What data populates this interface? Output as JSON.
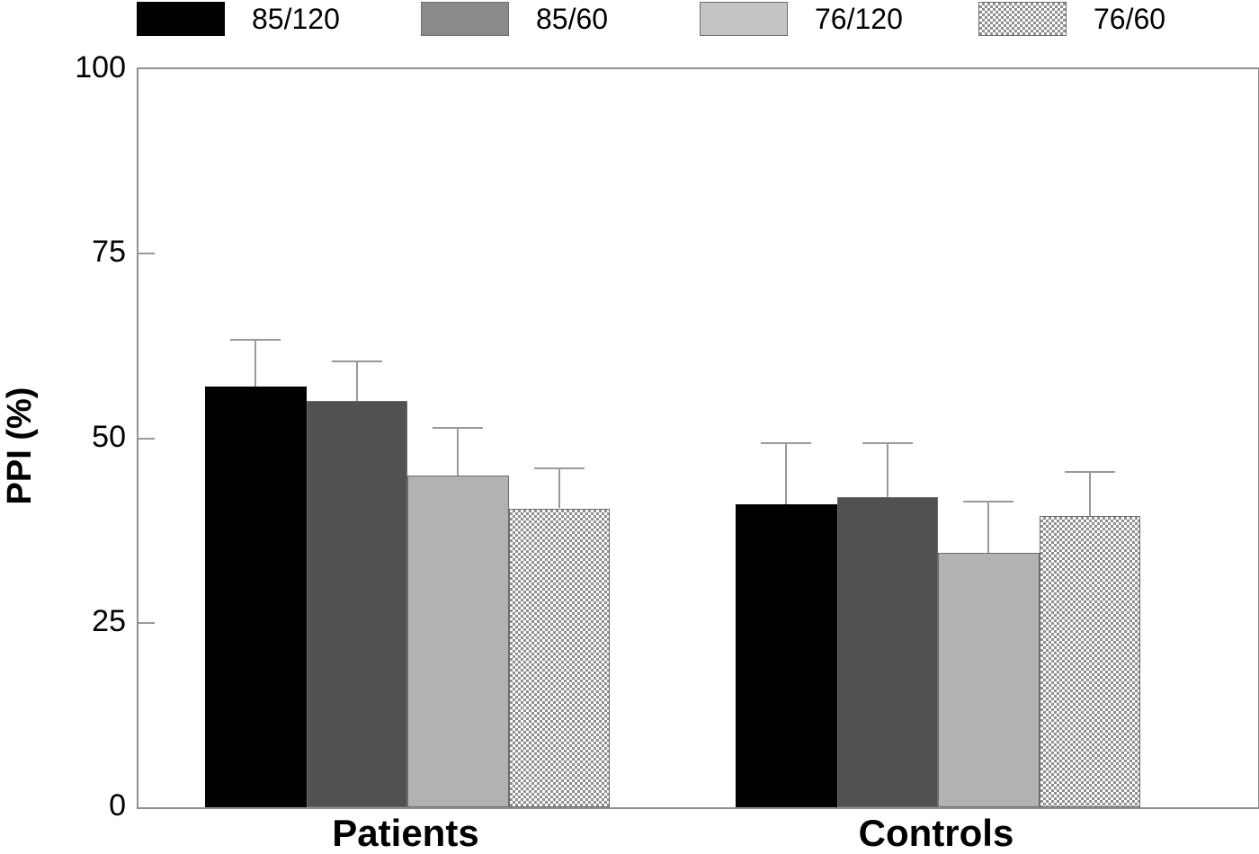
{
  "chart_data": {
    "type": "bar",
    "title": "",
    "ylabel": "PPI (%)",
    "xlabel": "",
    "ylim": [
      0,
      100
    ],
    "yticks": [
      0,
      25,
      50,
      75,
      100
    ],
    "categories": [
      "Patients",
      "Controls"
    ],
    "series": [
      {
        "name": "85/120",
        "bar_color": "#000000",
        "legend_color": "#000000",
        "pattern": false,
        "values": [
          57,
          41
        ],
        "errors": [
          6.5,
          8.5
        ]
      },
      {
        "name": "85/60",
        "bar_color": "#515151",
        "legend_color": "#8a8a8a",
        "pattern": false,
        "values": [
          55,
          42
        ],
        "errors": [
          5.5,
          7.5
        ]
      },
      {
        "name": "76/120",
        "bar_color": "#b2b2b2",
        "legend_color": "#c4c4c4",
        "pattern": false,
        "values": [
          45,
          34.5
        ],
        "errors": [
          6.5,
          7.0
        ]
      },
      {
        "name": "76/60",
        "bar_color": "#d9d9d9",
        "legend_color": "#d9d9d9",
        "pattern": true,
        "values": [
          40.5,
          39.5
        ],
        "errors": [
          5.5,
          6.0
        ]
      }
    ],
    "error_bars": "upper",
    "legend_position": "top",
    "grid": false,
    "axis_color": "#8f8f8f",
    "error_bar_color": "#999999"
  }
}
